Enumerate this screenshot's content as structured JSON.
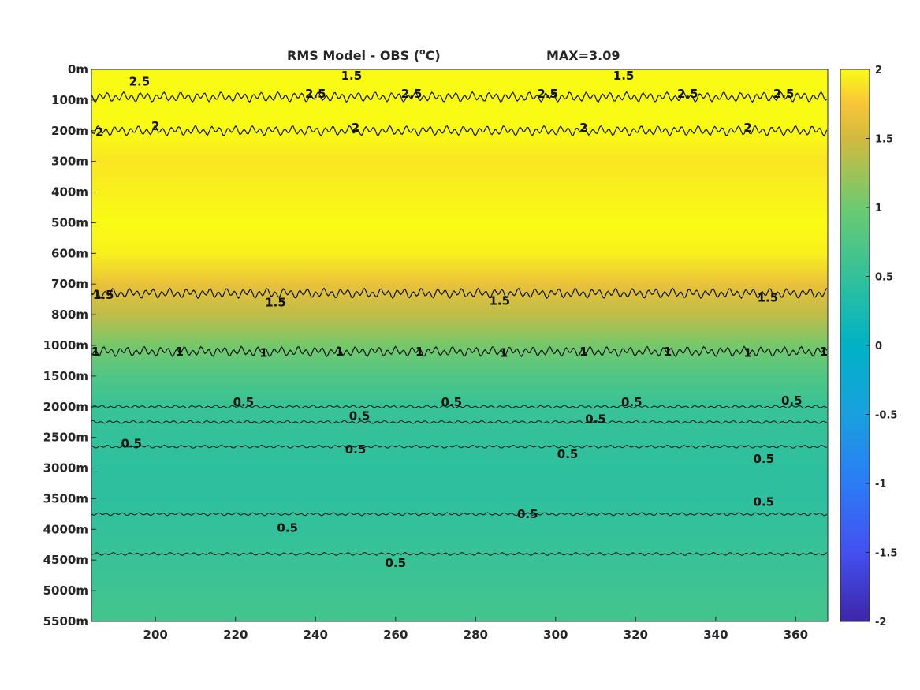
{
  "chart_data": {
    "type": "heatmap",
    "title": {
      "main": "RMS Model - OBS (",
      "sup": "o",
      "unit": "C)",
      "max_label": "MAX=3.09"
    },
    "x": {
      "range": [
        184,
        368
      ],
      "ticks": [
        200,
        220,
        240,
        260,
        280,
        300,
        320,
        340,
        360
      ]
    },
    "y": {
      "depth_levels": [
        "0m",
        "100m",
        "200m",
        "300m",
        "400m",
        "500m",
        "600m",
        "700m",
        "800m",
        "1000m",
        "1500m",
        "2000m",
        "2500m",
        "3000m",
        "3500m",
        "4000m",
        "4500m",
        "5000m",
        "5500m"
      ]
    },
    "colorbar": {
      "range": [
        -2,
        2
      ],
      "ticks": [
        "2",
        "1.5",
        "1",
        "0.5",
        "0",
        "-0.5",
        "-1",
        "-1.5",
        "-2"
      ],
      "colormap": "parula"
    },
    "field_profile": {
      "depth_index": [
        0,
        1,
        2,
        3,
        4,
        5,
        6,
        7,
        8,
        9,
        10,
        11,
        12,
        13,
        14,
        15,
        16,
        17,
        18
      ],
      "rms_value": [
        2.6,
        2.4,
        2.05,
        1.9,
        1.95,
        2.05,
        1.95,
        1.65,
        1.4,
        1.05,
        0.75,
        0.55,
        0.5,
        0.45,
        0.45,
        0.5,
        0.55,
        0.6,
        0.65
      ]
    },
    "contours": [
      {
        "level": 2.5,
        "depth_index": 0.9
      },
      {
        "level": 2,
        "depth_index": 2.0
      },
      {
        "level": 1.5,
        "depth_index": 7.3
      },
      {
        "level": 1,
        "depth_index": 9.2
      },
      {
        "level": 0.5,
        "depth_index": 11.0
      },
      {
        "level": 0.5,
        "depth_index": 11.5
      },
      {
        "level": 0.5,
        "depth_index": 12.3
      },
      {
        "level": 0.5,
        "depth_index": 14.5
      },
      {
        "level": 0.5,
        "depth_index": 15.8
      }
    ],
    "contour_labels": [
      {
        "text": "2.5",
        "x": 196,
        "depth_index": 0.4
      },
      {
        "text": "1.5",
        "x": 249,
        "depth_index": 0.2
      },
      {
        "text": "1.5",
        "x": 317,
        "depth_index": 0.2
      },
      {
        "text": "2.5",
        "x": 240,
        "depth_index": 0.8
      },
      {
        "text": "2.5",
        "x": 264,
        "depth_index": 0.8
      },
      {
        "text": "2.5",
        "x": 298,
        "depth_index": 0.8
      },
      {
        "text": "2.5",
        "x": 333,
        "depth_index": 0.8
      },
      {
        "text": "2.5",
        "x": 357,
        "depth_index": 0.8
      },
      {
        "text": "2",
        "x": 186,
        "depth_index": 2.05
      },
      {
        "text": "2",
        "x": 200,
        "depth_index": 1.85
      },
      {
        "text": "2",
        "x": 250,
        "depth_index": 1.9
      },
      {
        "text": "2",
        "x": 307,
        "depth_index": 1.9
      },
      {
        "text": "2",
        "x": 348,
        "depth_index": 1.9
      },
      {
        "text": "1.5",
        "x": 187,
        "depth_index": 7.35
      },
      {
        "text": "1.5",
        "x": 230,
        "depth_index": 7.6
      },
      {
        "text": "1.5",
        "x": 286,
        "depth_index": 7.55
      },
      {
        "text": "1.5",
        "x": 353,
        "depth_index": 7.45
      },
      {
        "text": "1",
        "x": 185,
        "depth_index": 9.2
      },
      {
        "text": "1",
        "x": 206,
        "depth_index": 9.2
      },
      {
        "text": "1",
        "x": 227,
        "depth_index": 9.25
      },
      {
        "text": "1",
        "x": 246,
        "depth_index": 9.2
      },
      {
        "text": "1",
        "x": 266,
        "depth_index": 9.2
      },
      {
        "text": "1",
        "x": 287,
        "depth_index": 9.25
      },
      {
        "text": "1",
        "x": 307,
        "depth_index": 9.2
      },
      {
        "text": "1",
        "x": 328,
        "depth_index": 9.2
      },
      {
        "text": "1",
        "x": 348,
        "depth_index": 9.25
      },
      {
        "text": "1",
        "x": 367,
        "depth_index": 9.2
      },
      {
        "text": "0.5",
        "x": 222,
        "depth_index": 10.85
      },
      {
        "text": "0.5",
        "x": 274,
        "depth_index": 10.85
      },
      {
        "text": "0.5",
        "x": 319,
        "depth_index": 10.85
      },
      {
        "text": "0.5",
        "x": 359,
        "depth_index": 10.8
      },
      {
        "text": "0.5",
        "x": 251,
        "depth_index": 11.3
      },
      {
        "text": "0.5",
        "x": 310,
        "depth_index": 11.4
      },
      {
        "text": "0.5",
        "x": 194,
        "depth_index": 12.2
      },
      {
        "text": "0.5",
        "x": 250,
        "depth_index": 12.4
      },
      {
        "text": "0.5",
        "x": 303,
        "depth_index": 12.55
      },
      {
        "text": "0.5",
        "x": 352,
        "depth_index": 12.7
      },
      {
        "text": "0.5",
        "x": 293,
        "depth_index": 14.5
      },
      {
        "text": "0.5",
        "x": 352,
        "depth_index": 14.1
      },
      {
        "text": "0.5",
        "x": 233,
        "depth_index": 14.95
      },
      {
        "text": "0.5",
        "x": 260,
        "depth_index": 16.1
      }
    ]
  }
}
